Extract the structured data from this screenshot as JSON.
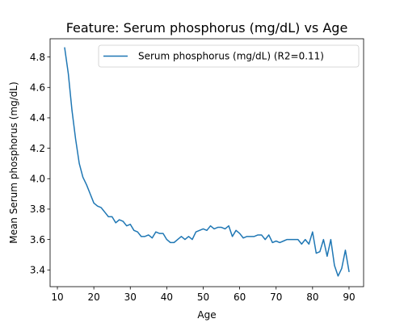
{
  "chart_data": {
    "type": "line",
    "title": "Feature: Serum phosphorus (mg/dL) vs Age",
    "xlabel": "Age",
    "ylabel": "Mean Serum phosphorus (mg/dL)",
    "xlim": [
      8,
      94
    ],
    "ylim": [
      3.29,
      4.92
    ],
    "xticks": [
      10,
      20,
      30,
      40,
      50,
      60,
      70,
      80,
      90
    ],
    "yticks": [
      3.4,
      3.6,
      3.8,
      4.0,
      4.2,
      4.4,
      4.6,
      4.8
    ],
    "grid": false,
    "legend_position": "top-right",
    "color": "#1f77b4",
    "series": [
      {
        "name": "Serum phosphorus (mg/dL) (R2=0.11)",
        "x": [
          12,
          13,
          14,
          15,
          16,
          17,
          18,
          19,
          20,
          21,
          22,
          23,
          24,
          25,
          26,
          27,
          28,
          29,
          30,
          31,
          32,
          33,
          34,
          35,
          36,
          37,
          38,
          39,
          40,
          41,
          42,
          43,
          44,
          45,
          46,
          47,
          48,
          49,
          50,
          51,
          52,
          53,
          54,
          55,
          56,
          57,
          58,
          59,
          60,
          61,
          62,
          63,
          64,
          65,
          66,
          67,
          68,
          69,
          70,
          71,
          72,
          73,
          74,
          75,
          76,
          77,
          78,
          79,
          80,
          81,
          82,
          83,
          84,
          85,
          86,
          87,
          88,
          89,
          90
        ],
        "y": [
          4.86,
          4.69,
          4.45,
          4.26,
          4.1,
          4.01,
          3.96,
          3.9,
          3.84,
          3.82,
          3.81,
          3.78,
          3.75,
          3.75,
          3.71,
          3.73,
          3.72,
          3.69,
          3.7,
          3.66,
          3.65,
          3.62,
          3.62,
          3.63,
          3.61,
          3.65,
          3.64,
          3.64,
          3.6,
          3.58,
          3.58,
          3.6,
          3.62,
          3.6,
          3.62,
          3.6,
          3.65,
          3.66,
          3.67,
          3.66,
          3.69,
          3.67,
          3.68,
          3.68,
          3.67,
          3.69,
          3.62,
          3.66,
          3.64,
          3.61,
          3.62,
          3.62,
          3.62,
          3.63,
          3.63,
          3.6,
          3.63,
          3.58,
          3.59,
          3.58,
          3.59,
          3.6,
          3.6,
          3.6,
          3.6,
          3.57,
          3.6,
          3.57,
          3.65,
          3.51,
          3.52,
          3.6,
          3.49,
          3.6,
          3.43,
          3.36,
          3.41,
          3.53,
          3.39
        ]
      }
    ]
  }
}
